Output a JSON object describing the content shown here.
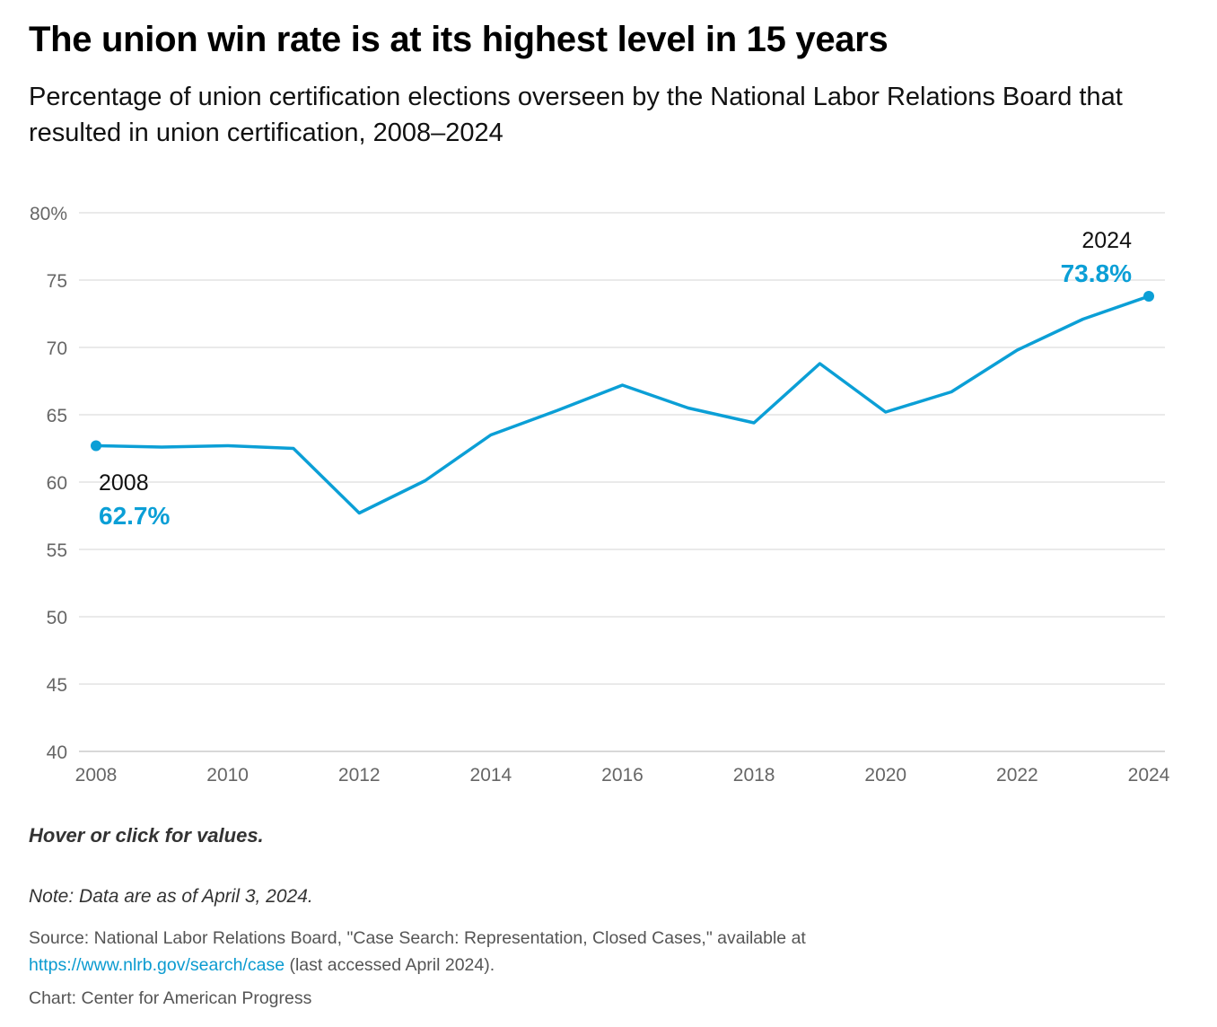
{
  "title": "The union win rate is at its highest level in 15 years",
  "subtitle": "Percentage of union certification elections overseen by the National Labor Relations Board that resulted in union certification, 2008–2024",
  "chart_data": {
    "type": "line",
    "x": [
      2008,
      2009,
      2010,
      2011,
      2012,
      2013,
      2014,
      2015,
      2016,
      2017,
      2018,
      2019,
      2020,
      2021,
      2022,
      2023,
      2024
    ],
    "series": [
      {
        "name": "Union win rate",
        "values": [
          62.7,
          62.6,
          62.7,
          62.5,
          57.7,
          60.1,
          63.5,
          65.3,
          67.2,
          65.5,
          64.4,
          68.8,
          65.2,
          66.7,
          69.8,
          72.1,
          73.8
        ]
      }
    ],
    "ylim": [
      40,
      80
    ],
    "xlim": [
      2008,
      2024
    ],
    "y_ticks": [
      "80%",
      "75",
      "70",
      "65",
      "60",
      "55",
      "50",
      "45",
      "40"
    ],
    "y_tick_values": [
      80,
      75,
      70,
      65,
      60,
      55,
      50,
      45,
      40
    ],
    "x_ticks": [
      "2008",
      "2010",
      "2012",
      "2014",
      "2016",
      "2018",
      "2020",
      "2022",
      "2024"
    ],
    "grid": true,
    "color": "#0b9fd6",
    "annotations": [
      {
        "year_label": "2008",
        "value_label": "62.7%",
        "x": 2008,
        "y": 62.7
      },
      {
        "year_label": "2024",
        "value_label": "73.8%",
        "x": 2024,
        "y": 73.8
      }
    ]
  },
  "footer": {
    "hover": "Hover or click for values.",
    "note": "Note: Data are as of April 3, 2024.",
    "source_prefix": "Source: National Labor Relations Board, \"Case Search: Representation, Closed Cases,\" available at",
    "source_link": "https://www.nlrb.gov/search/case",
    "source_suffix": " (last accessed April 2024).",
    "credit": "Chart: Center for American Progress"
  }
}
